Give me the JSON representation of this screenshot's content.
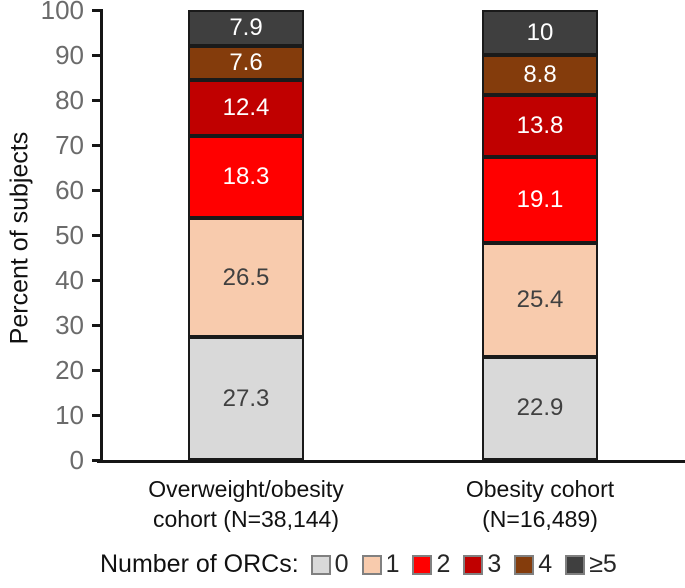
{
  "chart_data": {
    "type": "bar",
    "stacked": true,
    "orientation": "vertical",
    "title": "",
    "ylabel": "Percent of subjects",
    "xlabel": "",
    "ylim": [
      0,
      100
    ],
    "yticks": [
      0,
      10,
      20,
      30,
      40,
      50,
      60,
      70,
      80,
      90,
      100
    ],
    "grid": false,
    "legend_title": "Number of ORCs:",
    "legend_position": "bottom",
    "axis_color": "#161616",
    "tick_label_color": "#6b6b6b",
    "categories": [
      {
        "label": "Overweight/obesity cohort (N=38,144)",
        "lines": [
          "Overweight/obesity",
          "cohort (N=38,144)"
        ]
      },
      {
        "label": "Obesity cohort (N=16,489)",
        "lines": [
          "Obesity cohort",
          "(N=16,489)"
        ]
      }
    ],
    "series": [
      {
        "name": "0",
        "color": "#d9d9d9",
        "label_color": "#404040",
        "values": [
          27.3,
          22.9
        ],
        "labels": [
          "27.3",
          "22.9"
        ]
      },
      {
        "name": "1",
        "color": "#f8cbad",
        "label_color": "#404040",
        "values": [
          26.5,
          25.4
        ],
        "labels": [
          "26.5",
          "25.4"
        ]
      },
      {
        "name": "2",
        "color": "#ff0000",
        "label_color": "#ffffff",
        "values": [
          18.3,
          19.1
        ],
        "labels": [
          "18.3",
          "19.1"
        ]
      },
      {
        "name": "3",
        "color": "#c00000",
        "label_color": "#ffffff",
        "values": [
          12.4,
          13.8
        ],
        "labels": [
          "12.4",
          "13.8"
        ]
      },
      {
        "name": "4",
        "color": "#843c0c",
        "label_color": "#ffffff",
        "values": [
          7.6,
          8.8
        ],
        "labels": [
          "7.6",
          "8.8"
        ]
      },
      {
        "name": "≥5",
        "color": "#3f3f3f",
        "label_color": "#ffffff",
        "values": [
          7.9,
          10
        ],
        "labels": [
          "7.9",
          "10"
        ]
      }
    ]
  }
}
